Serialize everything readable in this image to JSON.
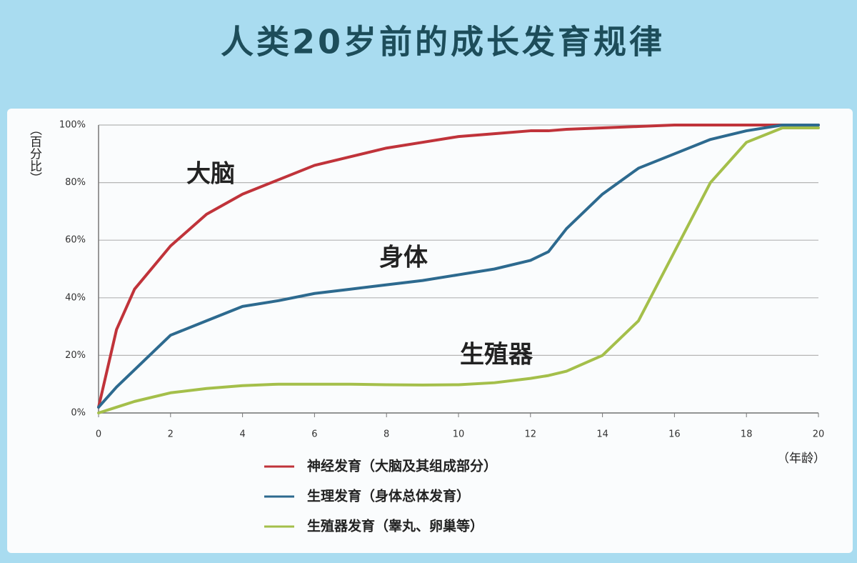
{
  "chart_data": {
    "type": "line",
    "title": "人类20岁前的成长发育规律",
    "y_label": "（百分比）",
    "x_label": "（年龄）",
    "annotations": [
      "大脑",
      "身体",
      "生殖器"
    ],
    "x": [
      0,
      0.5,
      1,
      2,
      3,
      4,
      5,
      6,
      7,
      8,
      9,
      10,
      11,
      12,
      12.5,
      13,
      14,
      15,
      16,
      17,
      18,
      19,
      20
    ],
    "series": [
      {
        "name": "神经发育（大脑及其组成部分）",
        "color": "#c0333a",
        "values": [
          2,
          29,
          43,
          58,
          69,
          76,
          81,
          86,
          89,
          92,
          94,
          96,
          97,
          98,
          98,
          98.5,
          99,
          99.5,
          100,
          100,
          100,
          100,
          100
        ]
      },
      {
        "name": "生理发育（身体总体发育）",
        "color": "#2d6a8f",
        "values": [
          2,
          9,
          15,
          27,
          32,
          37,
          39,
          41.5,
          43,
          44.5,
          46,
          48,
          50,
          53,
          56,
          64,
          76,
          85,
          90,
          95,
          98,
          100,
          100
        ]
      },
      {
        "name": "生殖器发育（睾丸、卵巢等）",
        "color": "#a4bf4a",
        "values": [
          0,
          2,
          4,
          7,
          8.5,
          9.5,
          10,
          10,
          10,
          9.8,
          9.7,
          9.8,
          10.5,
          12,
          13,
          14.5,
          20,
          32,
          56,
          80,
          94,
          99,
          99
        ]
      }
    ],
    "xlim": [
      0,
      20
    ],
    "xticks": [
      0,
      2,
      4,
      6,
      8,
      10,
      12,
      14,
      16,
      18,
      20
    ],
    "ylim": [
      0,
      100
    ],
    "yticks": [
      {
        "value": 0,
        "label": "0%"
      },
      {
        "value": 20,
        "label": "20%"
      },
      {
        "value": 40,
        "label": "40%"
      },
      {
        "value": 60,
        "label": "60%"
      },
      {
        "value": 80,
        "label": "80%"
      },
      {
        "value": 100,
        "label": "100%"
      }
    ],
    "grid": true
  }
}
